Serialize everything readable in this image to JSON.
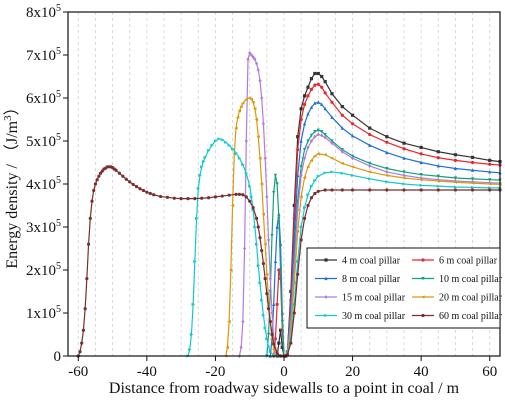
{
  "chart_data": {
    "type": "line",
    "title": "",
    "xlabel": "Distance from roadway sidewalls to a point in coal / m",
    "ylabel_prefix": "Energy density / （J/m",
    "ylabel_sup": "3",
    "ylabel_suffix": "）",
    "xlim": [
      -63,
      63
    ],
    "ylim": [
      0,
      800000
    ],
    "xticks": [
      -60,
      -40,
      -20,
      0,
      20,
      40,
      60
    ],
    "yticks": [
      {
        "value": 0,
        "mant": "0",
        "exp": ""
      },
      {
        "value": 100000,
        "mant": "1x10",
        "exp": "5"
      },
      {
        "value": 200000,
        "mant": "2x10",
        "exp": "5"
      },
      {
        "value": 300000,
        "mant": "3x10",
        "exp": "5"
      },
      {
        "value": 400000,
        "mant": "4x10",
        "exp": "5"
      },
      {
        "value": 500000,
        "mant": "5x10",
        "exp": "5"
      },
      {
        "value": 600000,
        "mant": "6x10",
        "exp": "5"
      },
      {
        "value": 700000,
        "mant": "7x10",
        "exp": "5"
      },
      {
        "value": 800000,
        "mant": "8x10",
        "exp": "5"
      }
    ],
    "grid": "vertical dashed",
    "legend_position": "bottom-right",
    "series": [
      {
        "name": "4 m  coal pillar",
        "color": "#333333",
        "marker": "square",
        "x": [
          -2,
          -1.5,
          -1,
          -0.5,
          0,
          0.5,
          1,
          2,
          3,
          4,
          5,
          6,
          7,
          8,
          9,
          10,
          11,
          12,
          14,
          17,
          20,
          25,
          30,
          35,
          40,
          45,
          50,
          55,
          60,
          63
        ],
        "y": [
          0,
          30000,
          60000,
          20000,
          0,
          0,
          10000,
          150000,
          350000,
          510000,
          575000,
          605000,
          625000,
          645000,
          657000,
          657000,
          650000,
          638000,
          610000,
          580000,
          560000,
          530000,
          510000,
          495000,
          485000,
          475000,
          468000,
          462000,
          455000,
          452000
        ]
      },
      {
        "name": "6 m  coal pillar",
        "color": "#e8262d",
        "marker": "circle",
        "x": [
          -3,
          -2.5,
          -2,
          -1.5,
          -1,
          -0.5,
          0,
          0.5,
          1,
          2,
          3,
          4,
          5,
          6,
          7,
          8,
          9,
          10,
          11,
          12,
          14,
          17,
          20,
          25,
          30,
          35,
          40,
          45,
          50,
          55,
          60,
          63
        ],
        "y": [
          0,
          40000,
          120000,
          200000,
          180000,
          60000,
          0,
          0,
          10000,
          130000,
          320000,
          480000,
          550000,
          585000,
          605000,
          620000,
          630000,
          632000,
          625000,
          612000,
          590000,
          560000,
          540000,
          515000,
          497000,
          482000,
          470000,
          461000,
          455000,
          450000,
          446000,
          444000
        ]
      },
      {
        "name": "8 m  coal pillar",
        "color": "#1f6fd6",
        "marker": "uptri",
        "x": [
          -4,
          -3.5,
          -3,
          -2.5,
          -2,
          -1.5,
          -1,
          -0.5,
          0,
          0.5,
          1,
          2,
          3,
          4,
          5,
          6,
          7,
          8,
          9,
          10,
          11,
          12,
          14,
          17,
          20,
          25,
          30,
          35,
          40,
          45,
          50,
          55,
          60,
          63
        ],
        "y": [
          0,
          40000,
          120000,
          220000,
          300000,
          330000,
          260000,
          100000,
          0,
          0,
          10000,
          110000,
          270000,
          420000,
          500000,
          540000,
          563000,
          578000,
          588000,
          590000,
          585000,
          575000,
          555000,
          530000,
          512000,
          490000,
          473000,
          460000,
          450000,
          442000,
          436000,
          432000,
          428000,
          426000
        ]
      },
      {
        "name": "10 m  coal pillar",
        "color": "#12a07e",
        "marker": "downtri",
        "x": [
          -5,
          -4.5,
          -4,
          -3.5,
          -3,
          -2.5,
          -2,
          -1.5,
          -1,
          -0.5,
          0,
          0.5,
          1,
          2,
          3,
          4,
          5,
          6,
          7,
          8,
          9,
          10,
          11,
          12,
          14,
          17,
          20,
          25,
          30,
          35,
          40,
          45,
          50,
          55,
          60,
          63
        ],
        "y": [
          0,
          50000,
          150000,
          280000,
          380000,
          420000,
          400000,
          320000,
          200000,
          80000,
          0,
          0,
          10000,
          90000,
          230000,
          360000,
          440000,
          480000,
          500000,
          513000,
          522000,
          525000,
          522000,
          515000,
          500000,
          480000,
          465000,
          448000,
          436000,
          428000,
          422000,
          418000,
          414000,
          412000,
          410000,
          409000
        ]
      },
      {
        "name": "15 m  coal pillar",
        "color": "#b07ce0",
        "marker": "diamond",
        "x": [
          -13,
          -12.5,
          -12,
          -11.5,
          -11,
          -10.5,
          -10,
          -9.5,
          -9,
          -8.5,
          -8,
          -7.5,
          -7,
          -6.5,
          -6,
          -5.5,
          -5,
          -4.5,
          -4,
          -3.5,
          -3,
          -2,
          -1,
          0,
          0.5,
          1,
          2,
          3,
          4,
          5,
          6,
          7,
          8,
          9,
          10,
          11,
          12,
          14,
          17,
          20,
          25,
          30,
          35,
          40,
          45,
          50,
          55,
          60,
          63
        ],
        "y": [
          0,
          20000,
          80000,
          250000,
          500000,
          690000,
          705000,
          700000,
          695000,
          690000,
          680000,
          665000,
          640000,
          600000,
          540000,
          460000,
          370000,
          270000,
          180000,
          100000,
          40000,
          5000,
          0,
          0,
          0,
          8000,
          80000,
          210000,
          340000,
          420000,
          460000,
          485000,
          500000,
          510000,
          515000,
          513000,
          508000,
          495000,
          475000,
          460000,
          442000,
          428000,
          420000,
          414000,
          410000,
          407000,
          405000,
          403000,
          402000
        ]
      },
      {
        "name": "20 m  coal pillar",
        "color": "#d99a0b",
        "marker": "lefttri",
        "x": [
          -17,
          -16.5,
          -16,
          -15.5,
          -15,
          -14.5,
          -14,
          -13.5,
          -13,
          -12.5,
          -12,
          -11,
          -10,
          -9.5,
          -9,
          -8.5,
          -8,
          -7.5,
          -7,
          -6.5,
          -6,
          -5.5,
          -5,
          -4.5,
          -4,
          -3.5,
          -3,
          -2,
          -1,
          0,
          0.5,
          1,
          2,
          3,
          4,
          5,
          6,
          7,
          8,
          9,
          10,
          12,
          14,
          17,
          20,
          25,
          30,
          35,
          40,
          45,
          50,
          55,
          60,
          63
        ],
        "y": [
          0,
          20000,
          80000,
          200000,
          350000,
          470000,
          530000,
          555000,
          570000,
          580000,
          588000,
          597000,
          600000,
          597000,
          590000,
          575000,
          550000,
          510000,
          460000,
          400000,
          330000,
          260000,
          190000,
          130000,
          80000,
          40000,
          15000,
          3000,
          0,
          0,
          0,
          6000,
          60000,
          170000,
          290000,
          370000,
          415000,
          440000,
          455000,
          465000,
          470000,
          468000,
          460000,
          448000,
          440000,
          428000,
          420000,
          414000,
          410000,
          407000,
          404000,
          402000,
          400000,
          399000
        ]
      },
      {
        "name": "30 m  coal pillar",
        "color": "#10c8d0",
        "marker": "righttri",
        "x": [
          -28,
          -27.5,
          -27,
          -26.5,
          -26,
          -25.5,
          -25,
          -24.5,
          -24,
          -23.5,
          -23,
          -22,
          -21,
          -20,
          -19,
          -18,
          -17,
          -16,
          -15,
          -14,
          -13,
          -12,
          -11,
          -10,
          -9.5,
          -9,
          -8.5,
          -8,
          -7.5,
          -7,
          -6.5,
          -6,
          -5.5,
          -5,
          -4.5,
          -4,
          -3,
          -2,
          -1,
          0,
          0.5,
          1,
          2,
          3,
          4,
          5,
          6,
          7,
          8,
          9,
          10,
          12,
          14,
          17,
          20,
          25,
          30,
          35,
          40,
          45,
          50,
          55,
          60,
          63
        ],
        "y": [
          0,
          15000,
          50000,
          120000,
          220000,
          320000,
          390000,
          420000,
          440000,
          452000,
          462000,
          478000,
          490000,
          500000,
          505000,
          503000,
          497000,
          490000,
          482000,
          472000,
          460000,
          445000,
          425000,
          395000,
          370000,
          340000,
          300000,
          260000,
          210000,
          170000,
          130000,
          95000,
          65000,
          40000,
          22000,
          10000,
          2000,
          0,
          0,
          0,
          0,
          4000,
          40000,
          120000,
          220000,
          300000,
          345000,
          375000,
          395000,
          408000,
          418000,
          426000,
          428000,
          425000,
          420000,
          412000,
          405000,
          400000,
          397000,
          395000,
          393000,
          392000,
          391000,
          391000
        ]
      },
      {
        "name": "60 m  coal pillar",
        "color": "#7a2e2e",
        "marker": "circle",
        "x": [
          -60,
          -59.5,
          -59,
          -58.5,
          -58,
          -57.5,
          -57,
          -56.5,
          -56,
          -55.5,
          -55,
          -54.5,
          -54,
          -53.5,
          -53,
          -52.5,
          -52,
          -51.5,
          -51,
          -50.5,
          -50,
          -49.5,
          -49,
          -48,
          -47,
          -46,
          -45,
          -44,
          -43,
          -42,
          -41,
          -40,
          -39,
          -38,
          -36,
          -34,
          -32,
          -30,
          -28,
          -26,
          -24,
          -22,
          -20,
          -18,
          -16,
          -14,
          -13,
          -12,
          -11,
          -10,
          -9,
          -8,
          -7.5,
          -7,
          -6.5,
          -6,
          -5.5,
          -5,
          -4.5,
          -4,
          -3.5,
          -3,
          -2,
          -1,
          0,
          0.5,
          1,
          2,
          3,
          4,
          5,
          6,
          7,
          8,
          9,
          10,
          12,
          14,
          17,
          20,
          25,
          30,
          35,
          40,
          45,
          50,
          55,
          60,
          63
        ],
        "y": [
          0,
          10000,
          30000,
          60000,
          110000,
          180000,
          260000,
          320000,
          360000,
          385000,
          400000,
          410000,
          418000,
          425000,
          430000,
          435000,
          437000,
          440000,
          440000,
          440000,
          438000,
          435000,
          432000,
          425000,
          418000,
          411000,
          405000,
          399000,
          394000,
          389000,
          385000,
          381000,
          378000,
          375000,
          371000,
          369000,
          367000,
          366000,
          366000,
          366000,
          367000,
          368000,
          370000,
          372000,
          374000,
          376000,
          376000,
          375000,
          370000,
          360000,
          345000,
          320000,
          300000,
          275000,
          245000,
          215000,
          180000,
          145000,
          110000,
          80000,
          50000,
          28000,
          6000,
          0,
          0,
          0,
          3000,
          30000,
          100000,
          190000,
          270000,
          320000,
          350000,
          368000,
          378000,
          383000,
          386000,
          386000,
          386000,
          386000,
          386000,
          386000,
          386000,
          386000,
          386000,
          386000,
          386000,
          386000,
          386000
        ]
      }
    ]
  }
}
